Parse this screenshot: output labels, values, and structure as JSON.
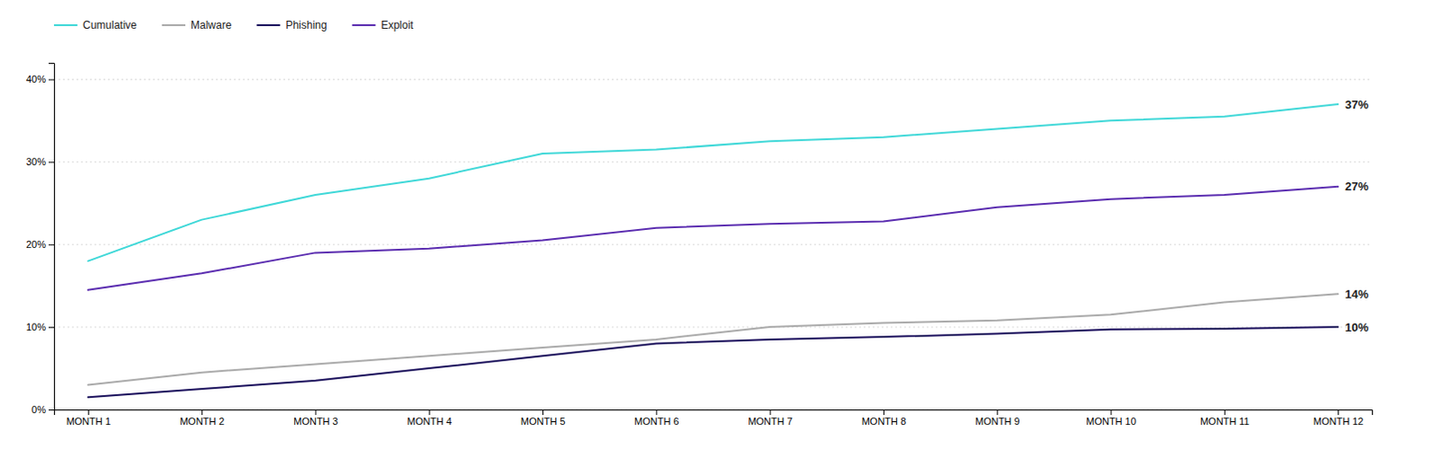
{
  "chart_data": {
    "type": "line",
    "categories": [
      "MONTH 1",
      "MONTH 2",
      "MONTH 3",
      "MONTH 4",
      "MONTH 5",
      "MONTH 6",
      "MONTH 7",
      "MONTH 8",
      "MONTH 9",
      "MONTH 10",
      "MONTH 11",
      "MONTH 12"
    ],
    "series": [
      {
        "name": "Cumulative",
        "color": "#40d8d8",
        "values": [
          0.18,
          0.23,
          0.26,
          0.28,
          0.31,
          0.315,
          0.325,
          0.33,
          0.34,
          0.35,
          0.355,
          0.37
        ]
      },
      {
        "name": "Malware",
        "color": "#aaaaaa",
        "values": [
          0.03,
          0.045,
          0.055,
          0.065,
          0.075,
          0.085,
          0.1,
          0.105,
          0.108,
          0.115,
          0.13,
          0.14
        ]
      },
      {
        "name": "Phishing",
        "color": "#1a0e5c",
        "values": [
          0.015,
          0.025,
          0.035,
          0.05,
          0.065,
          0.08,
          0.085,
          0.088,
          0.092,
          0.097,
          0.098,
          0.1
        ]
      },
      {
        "name": "Exploit",
        "color": "#5b2db0",
        "values": [
          0.145,
          0.165,
          0.19,
          0.195,
          0.205,
          0.22,
          0.225,
          0.228,
          0.245,
          0.255,
          0.26,
          0.27
        ]
      }
    ],
    "ylim": [
      0,
      0.42
    ],
    "yticks": [
      {
        "value": 0.0,
        "label": "0%"
      },
      {
        "value": 0.1,
        "label": "10%"
      },
      {
        "value": 0.2,
        "label": "20%"
      },
      {
        "value": 0.3,
        "label": "30%"
      },
      {
        "value": 0.4,
        "label": "40%"
      }
    ],
    "annotations": [
      {
        "text": "37%",
        "x": "MONTH 12",
        "y": 0.37
      },
      {
        "text": "27%",
        "x": "MONTH 12",
        "y": 0.27
      },
      {
        "text": "14%",
        "x": "MONTH 12",
        "y": 0.14
      },
      {
        "text": "10%",
        "x": "MONTH 12",
        "y": 0.1
      }
    ],
    "grid": true,
    "legend": "top"
  }
}
